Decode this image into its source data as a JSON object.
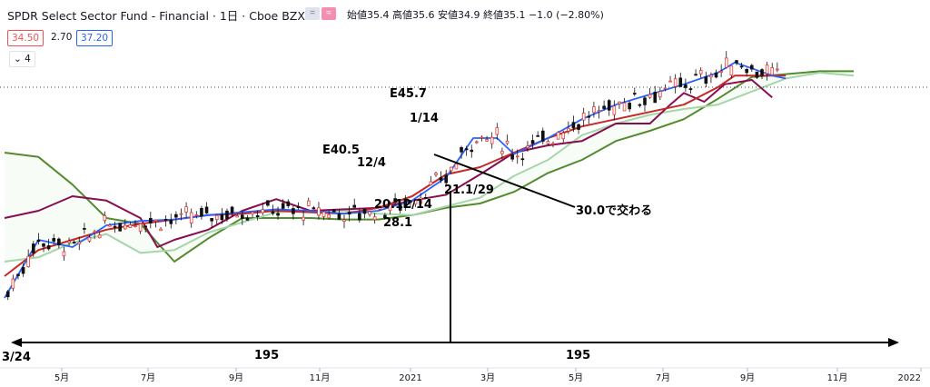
{
  "header": {
    "title": "SPDR Select Sector Fund - Financial · 1日 · Cboe BZX",
    "ohlc": "始値35.4 高値35.6 安値34.9 終値35.1 −1.0 (−2.80%)"
  },
  "indicator_chips": {
    "red_value": "34.50",
    "mid_value": "2.70",
    "blue_value": "37.20",
    "collapse_count": "4"
  },
  "colors": {
    "up": "#26a69a",
    "down": "#ef5350",
    "blue_ma": "#2962ff",
    "red_line": "#c62828",
    "purple_line": "#880e4f",
    "dark_green": "#558b2f",
    "light_green": "#a5d6a7",
    "annotation": "#000000"
  },
  "annotations": {
    "e45": "E45.7",
    "d_0114": "1/14",
    "e40": "E40.5",
    "d_1204": "12/4",
    "d_20_1214": "20.12/14",
    "d_211_29": "21.1/29",
    "v_28": "28.1",
    "cross": "30.0で交わる",
    "left_date": "3/24",
    "span_left": "195",
    "span_right": "195"
  },
  "chart_data": {
    "type": "line",
    "title": "SPDR Select Sector Fund - Financial · 1日 · Cboe BZX",
    "xlabel": "",
    "ylabel": "",
    "x_ticks": [
      "5月",
      "7月",
      "9月",
      "11月",
      "2021",
      "3月",
      "5月",
      "7月",
      "9月",
      "11月",
      "2022"
    ],
    "y_range": [
      20.5,
      40.5
    ],
    "current_price": 35.1,
    "series": [
      {
        "id": "chikou",
        "points": [
          [
            0,
            28.0
          ],
          [
            10,
            28.5
          ],
          [
            20,
            29.5
          ],
          [
            30,
            29.2
          ],
          [
            40,
            28.0
          ],
          [
            45,
            26.0
          ],
          [
            50,
            26.5
          ],
          [
            60,
            27.2
          ],
          [
            70,
            28.5
          ],
          [
            80,
            29.3
          ],
          [
            90,
            28.5
          ],
          [
            100,
            28.6
          ],
          [
            110,
            28.7
          ],
          [
            120,
            29.2
          ],
          [
            130,
            29.6
          ],
          [
            140,
            31.0
          ],
          [
            150,
            32.5
          ],
          [
            160,
            33.0
          ],
          [
            170,
            33.3
          ],
          [
            180,
            34.5
          ],
          [
            190,
            34.5
          ],
          [
            196,
            35.8
          ],
          [
            200,
            36.6
          ],
          [
            206,
            36.0
          ],
          [
            212,
            37.2
          ],
          [
            220,
            37.5
          ],
          [
            226,
            36.3
          ]
        ]
      },
      {
        "id": "price_blue",
        "points": [
          [
            0,
            22.5
          ],
          [
            10,
            26.5
          ],
          [
            20,
            26.0
          ],
          [
            30,
            27.5
          ],
          [
            40,
            27.8
          ],
          [
            50,
            27.9
          ],
          [
            60,
            28.2
          ],
          [
            70,
            28.4
          ],
          [
            80,
            28.6
          ],
          [
            90,
            28.5
          ],
          [
            100,
            28.3
          ],
          [
            110,
            28.5
          ],
          [
            120,
            29.2
          ],
          [
            130,
            30.8
          ],
          [
            138,
            33.5
          ],
          [
            145,
            33.5
          ],
          [
            150,
            32.4
          ],
          [
            160,
            33.5
          ],
          [
            170,
            34.8
          ],
          [
            180,
            35.8
          ],
          [
            190,
            36.5
          ],
          [
            200,
            37.2
          ],
          [
            210,
            38.0
          ],
          [
            215,
            38.7
          ],
          [
            220,
            38.3
          ],
          [
            226,
            37.8
          ],
          [
            230,
            37.6
          ]
        ]
      },
      {
        "id": "kijun_red",
        "points": [
          [
            0,
            24.0
          ],
          [
            10,
            25.8
          ],
          [
            20,
            26.5
          ],
          [
            30,
            27.2
          ],
          [
            40,
            27.6
          ],
          [
            50,
            27.9
          ],
          [
            60,
            28.2
          ],
          [
            70,
            28.3
          ],
          [
            80,
            28.5
          ],
          [
            90,
            28.4
          ],
          [
            100,
            28.3
          ],
          [
            110,
            28.7
          ],
          [
            120,
            29.5
          ],
          [
            130,
            31.0
          ],
          [
            140,
            31.5
          ],
          [
            150,
            32.5
          ],
          [
            160,
            33.5
          ],
          [
            170,
            34.3
          ],
          [
            180,
            34.8
          ],
          [
            190,
            35.3
          ],
          [
            200,
            35.8
          ],
          [
            210,
            37.0
          ],
          [
            215,
            37.8
          ],
          [
            220,
            37.8
          ],
          [
            226,
            37.8
          ],
          [
            230,
            37.8
          ]
        ]
      },
      {
        "id": "senkou_a_light",
        "points": [
          [
            0,
            25.0
          ],
          [
            10,
            25.3
          ],
          [
            20,
            26.3
          ],
          [
            30,
            26.9
          ],
          [
            40,
            25.6
          ],
          [
            50,
            25.8
          ],
          [
            60,
            27.0
          ],
          [
            70,
            27.7
          ],
          [
            80,
            28.4
          ],
          [
            90,
            28.5
          ],
          [
            100,
            28.5
          ],
          [
            110,
            28.3
          ],
          [
            120,
            28.2
          ],
          [
            130,
            28.8
          ],
          [
            140,
            29.4
          ],
          [
            150,
            30.9
          ],
          [
            160,
            32.0
          ],
          [
            170,
            33.7
          ],
          [
            180,
            34.5
          ],
          [
            190,
            35.1
          ],
          [
            200,
            35.5
          ],
          [
            210,
            35.8
          ],
          [
            220,
            36.7
          ],
          [
            230,
            37.6
          ],
          [
            240,
            38.0
          ],
          [
            250,
            37.8
          ]
        ]
      },
      {
        "id": "senkou_b_dark",
        "points": [
          [
            0,
            32.5
          ],
          [
            10,
            32.2
          ],
          [
            20,
            30.3
          ],
          [
            30,
            28.0
          ],
          [
            40,
            27.6
          ],
          [
            50,
            25.0
          ],
          [
            60,
            26.6
          ],
          [
            70,
            28.0
          ],
          [
            80,
            28.0
          ],
          [
            90,
            28.0
          ],
          [
            100,
            27.9
          ],
          [
            110,
            27.9
          ],
          [
            120,
            28.2
          ],
          [
            130,
            28.7
          ],
          [
            140,
            29.0
          ],
          [
            150,
            29.8
          ],
          [
            160,
            31.1
          ],
          [
            170,
            32.0
          ],
          [
            180,
            33.3
          ],
          [
            190,
            34.0
          ],
          [
            200,
            34.8
          ],
          [
            210,
            36.2
          ],
          [
            220,
            37.7
          ],
          [
            230,
            37.9
          ],
          [
            240,
            38.1
          ],
          [
            250,
            38.1
          ]
        ]
      }
    ]
  }
}
